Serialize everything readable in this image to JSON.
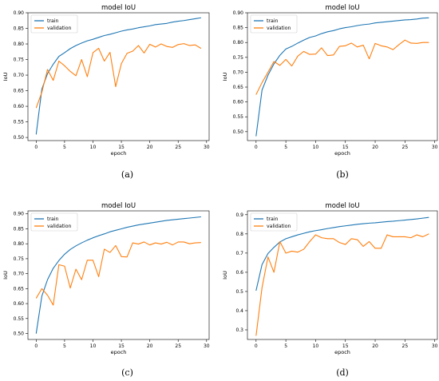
{
  "colors": {
    "train": "#1f77b4",
    "validation": "#ff7f0e"
  },
  "chart_data": [
    {
      "type": "line",
      "caption": "(a)",
      "title": "model IoU",
      "xlabel": "epoch",
      "ylabel": "IoU",
      "xlim": [
        -1.45,
        30.45
      ],
      "ylim": [
        0.49,
        0.9
      ],
      "xticks": [
        0,
        5,
        10,
        15,
        20,
        25,
        30
      ],
      "yticks": [
        0.5,
        0.55,
        0.6,
        0.65,
        0.7,
        0.75,
        0.8,
        0.85,
        0.9
      ],
      "ytick_labels": [
        "0.50",
        "0.55",
        "0.60",
        "0.65",
        "0.70",
        "0.75",
        "0.80",
        "0.85",
        "0.90"
      ],
      "legend": "top-left",
      "series": [
        {
          "name": "train",
          "color": "#1f77b4",
          "values": [
            0.51,
            0.655,
            0.705,
            0.735,
            0.76,
            0.772,
            0.785,
            0.795,
            0.803,
            0.81,
            0.815,
            0.821,
            0.827,
            0.831,
            0.836,
            0.841,
            0.845,
            0.848,
            0.852,
            0.855,
            0.858,
            0.862,
            0.864,
            0.866,
            0.87,
            0.873,
            0.875,
            0.878,
            0.881,
            0.884
          ]
        },
        {
          "name": "validation",
          "color": "#ff7f0e",
          "values": [
            0.595,
            0.645,
            0.718,
            0.683,
            0.745,
            0.73,
            0.712,
            0.698,
            0.75,
            0.695,
            0.772,
            0.786,
            0.745,
            0.773,
            0.663,
            0.737,
            0.77,
            0.777,
            0.795,
            0.771,
            0.799,
            0.79,
            0.8,
            0.792,
            0.789,
            0.798,
            0.801,
            0.795,
            0.797,
            0.786
          ]
        }
      ]
    },
    {
      "type": "line",
      "caption": "(b)",
      "title": "model IoU",
      "xlabel": "epoch",
      "ylabel": "IoU",
      "xlim": [
        -1.45,
        30.45
      ],
      "ylim": [
        0.47,
        0.9
      ],
      "xticks": [
        0,
        5,
        10,
        15,
        20,
        25,
        30
      ],
      "yticks": [
        0.5,
        0.55,
        0.6,
        0.65,
        0.7,
        0.75,
        0.8,
        0.85,
        0.9
      ],
      "ytick_labels": [
        "0.50",
        "0.55",
        "0.60",
        "0.65",
        "0.70",
        "0.75",
        "0.80",
        "0.85",
        "0.90"
      ],
      "legend": "top-left",
      "series": [
        {
          "name": "train",
          "color": "#1f77b4",
          "values": [
            0.485,
            0.64,
            0.69,
            0.728,
            0.757,
            0.778,
            0.787,
            0.798,
            0.808,
            0.817,
            0.822,
            0.83,
            0.836,
            0.84,
            0.846,
            0.85,
            0.853,
            0.857,
            0.86,
            0.862,
            0.866,
            0.868,
            0.87,
            0.872,
            0.874,
            0.876,
            0.877,
            0.879,
            0.882,
            0.883
          ]
        },
        {
          "name": "validation",
          "color": "#ff7f0e",
          "values": [
            0.625,
            0.665,
            0.7,
            0.736,
            0.723,
            0.743,
            0.721,
            0.754,
            0.77,
            0.76,
            0.761,
            0.782,
            0.756,
            0.758,
            0.787,
            0.789,
            0.798,
            0.785,
            0.791,
            0.745,
            0.797,
            0.789,
            0.785,
            0.776,
            0.793,
            0.808,
            0.798,
            0.797,
            0.8,
            0.8
          ]
        }
      ]
    },
    {
      "type": "line",
      "caption": "(c)",
      "title": "model IoU",
      "xlabel": "epoch",
      "ylabel": "IoU",
      "xlim": [
        -1.45,
        30.45
      ],
      "ylim": [
        0.48,
        0.91
      ],
      "xticks": [
        0,
        5,
        10,
        15,
        20,
        25,
        30
      ],
      "yticks": [
        0.5,
        0.55,
        0.6,
        0.65,
        0.7,
        0.75,
        0.8,
        0.85,
        0.9
      ],
      "ytick_labels": [
        "0.50",
        "0.55",
        "0.60",
        "0.65",
        "0.70",
        "0.75",
        "0.80",
        "0.85",
        "0.90"
      ],
      "legend": "top-left",
      "series": [
        {
          "name": "train",
          "color": "#1f77b4",
          "values": [
            0.5,
            0.625,
            0.68,
            0.718,
            0.744,
            0.765,
            0.781,
            0.793,
            0.803,
            0.812,
            0.82,
            0.827,
            0.833,
            0.84,
            0.845,
            0.85,
            0.855,
            0.859,
            0.863,
            0.866,
            0.869,
            0.872,
            0.875,
            0.878,
            0.88,
            0.882,
            0.884,
            0.886,
            0.888,
            0.89
          ]
        },
        {
          "name": "validation",
          "color": "#ff7f0e",
          "values": [
            0.618,
            0.65,
            0.628,
            0.595,
            0.73,
            0.725,
            0.652,
            0.715,
            0.68,
            0.745,
            0.745,
            0.69,
            0.782,
            0.771,
            0.794,
            0.757,
            0.756,
            0.803,
            0.799,
            0.806,
            0.796,
            0.803,
            0.799,
            0.805,
            0.796,
            0.806,
            0.806,
            0.8,
            0.803,
            0.804
          ]
        }
      ]
    },
    {
      "type": "line",
      "caption": "(d)",
      "title": "model IoU",
      "xlabel": "epoch",
      "ylabel": "IoU",
      "xlim": [
        -1.45,
        30.45
      ],
      "ylim": [
        0.25,
        0.92
      ],
      "xticks": [
        0,
        5,
        10,
        15,
        20,
        25,
        30
      ],
      "yticks": [
        0.3,
        0.4,
        0.5,
        0.6,
        0.7,
        0.8,
        0.9
      ],
      "ytick_labels": [
        "0.3",
        "0.4",
        "0.5",
        "0.6",
        "0.7",
        "0.8",
        "0.9"
      ],
      "legend": "top-left",
      "series": [
        {
          "name": "train",
          "color": "#1f77b4",
          "values": [
            0.505,
            0.64,
            0.698,
            0.73,
            0.758,
            0.775,
            0.785,
            0.795,
            0.803,
            0.811,
            0.817,
            0.822,
            0.828,
            0.833,
            0.838,
            0.842,
            0.846,
            0.85,
            0.853,
            0.856,
            0.858,
            0.861,
            0.864,
            0.866,
            0.869,
            0.872,
            0.875,
            0.878,
            0.882,
            0.886
          ]
        },
        {
          "name": "validation",
          "color": "#ff7f0e",
          "values": [
            0.27,
            0.52,
            0.68,
            0.6,
            0.76,
            0.7,
            0.71,
            0.705,
            0.72,
            0.76,
            0.795,
            0.78,
            0.775,
            0.775,
            0.755,
            0.745,
            0.775,
            0.77,
            0.735,
            0.76,
            0.725,
            0.725,
            0.795,
            0.785,
            0.785,
            0.785,
            0.78,
            0.795,
            0.785,
            0.8
          ]
        }
      ]
    }
  ]
}
